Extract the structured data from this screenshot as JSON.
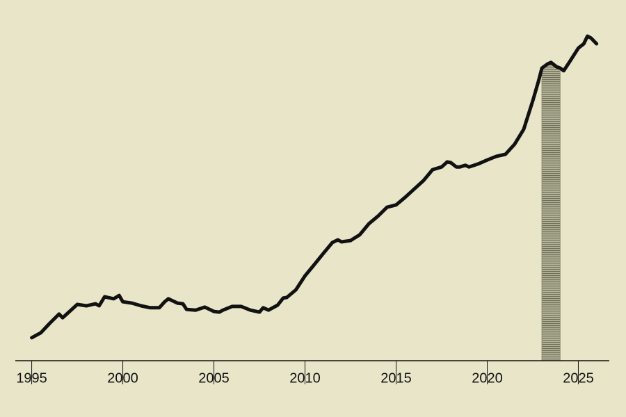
{
  "chart_data": {
    "type": "line",
    "x": [
      1995,
      1995.5,
      1996,
      1996.5,
      1996.7,
      1997,
      1997.5,
      1998,
      1998.5,
      1998.7,
      1999,
      1999.5,
      1999.8,
      2000,
      2000.5,
      2001,
      2001.5,
      2002,
      2002.3,
      2002.5,
      2003,
      2003.3,
      2003.5,
      2004,
      2004.5,
      2005,
      2005.3,
      2005.5,
      2006,
      2006.5,
      2007,
      2007.5,
      2007.7,
      2008,
      2008.5,
      2008.8,
      2009,
      2009.5,
      2010,
      2010.5,
      2011,
      2011.5,
      2011.8,
      2012,
      2012.5,
      2013,
      2013.5,
      2014,
      2014.5,
      2015,
      2015.5,
      2016,
      2016.5,
      2017,
      2017.5,
      2017.8,
      2018,
      2018.3,
      2018.5,
      2018.8,
      2019,
      2019.5,
      2020,
      2020.5,
      2021,
      2021.5,
      2022,
      2022.5,
      2022.8,
      2023,
      2023.3,
      2023.5,
      2023.8,
      2024,
      2024.2,
      2024.5,
      2025,
      2025.3,
      2025.5,
      2025.7,
      2026
    ],
    "series": [
      {
        "color": "#111111",
        "values": [
          6.9,
          8.4,
          11.3,
          14.0,
          12.9,
          14.4,
          16.9,
          16.5,
          17.1,
          16.5,
          19.2,
          18.6,
          19.6,
          17.7,
          17.3,
          16.5,
          15.9,
          15.9,
          17.7,
          18.6,
          17.3,
          17.1,
          15.4,
          15.2,
          16.1,
          14.8,
          14.6,
          15.2,
          16.3,
          16.3,
          15.2,
          14.6,
          15.9,
          15.2,
          16.7,
          18.8,
          19.0,
          21.3,
          25.5,
          28.8,
          32.2,
          35.5,
          36.3,
          35.7,
          36.1,
          37.8,
          41.1,
          43.4,
          46.1,
          46.8,
          49.1,
          51.6,
          54.1,
          57.4,
          58.2,
          59.7,
          59.5,
          58.2,
          58.2,
          58.7,
          58.2,
          59.1,
          60.3,
          61.4,
          62.0,
          65.0,
          69.5,
          78.1,
          83.7,
          87.9,
          89.1,
          89.6,
          88.3,
          87.9,
          87.1,
          89.6,
          93.9,
          95.2,
          97.5,
          96.9,
          95.2
        ]
      }
    ],
    "shaded_span": [
      2023,
      2024
    ],
    "shade_color": "#8c8c70",
    "xlim": [
      1994.1,
      2026.7
    ],
    "xticks": [
      1995,
      2000,
      2005,
      2010,
      2015,
      2020,
      2025
    ],
    "ylim": [
      0,
      100
    ]
  }
}
